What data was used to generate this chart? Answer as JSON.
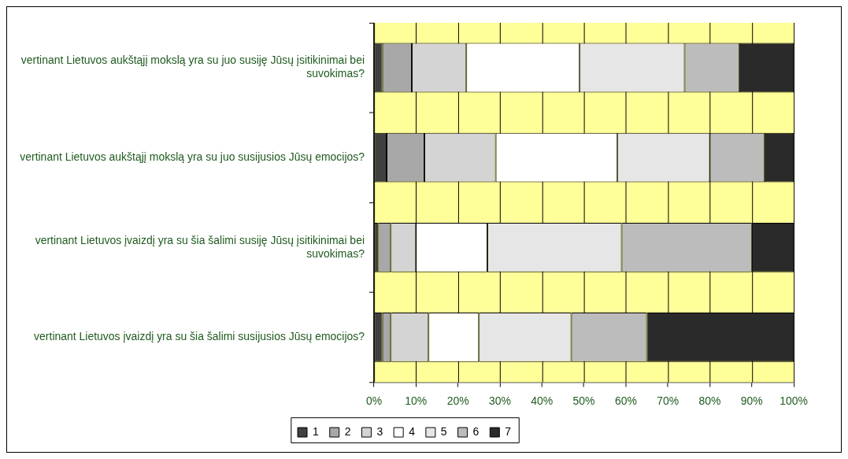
{
  "chart_data": {
    "type": "bar",
    "orientation": "horizontal",
    "stacked": true,
    "categories": [
      "vertinant Lietuvos aukštąjį mokslą yra su juo susiję Jūsų įsitikinimai bei suvokimas?",
      "vertinant Lietuvos aukštąjį mokslą yra su juo susijusios Jūsų emocijos?",
      "vertinant Lietuvos įvaizdį yra su šia šalimi susiję Jūsų įsitikinimai bei suvokimas?",
      "vertinant Lietuvos įvaizdį yra su šia šalimi susijusios Jūsų emocijos?"
    ],
    "series": [
      {
        "name": "1",
        "color": "#404040",
        "values": [
          2,
          3,
          1,
          2
        ]
      },
      {
        "name": "2",
        "color": "#a8a8a8",
        "values": [
          7,
          9,
          3,
          2
        ]
      },
      {
        "name": "3",
        "color": "#d4d4d4",
        "values": [
          13,
          17,
          6,
          9
        ]
      },
      {
        "name": "4",
        "color": "#ffffff",
        "values": [
          27,
          29,
          17,
          12
        ]
      },
      {
        "name": "5",
        "color": "#e6e6e6",
        "values": [
          25,
          22,
          32,
          22
        ]
      },
      {
        "name": "6",
        "color": "#bcbcbc",
        "values": [
          13,
          13,
          31,
          18
        ]
      },
      {
        "name": "7",
        "color": "#2a2a2a",
        "values": [
          13,
          7,
          10,
          35
        ]
      }
    ],
    "xlim": [
      0,
      100
    ],
    "xticks": [
      {
        "value": 0,
        "label": "0%"
      },
      {
        "value": 10,
        "label": "10%"
      },
      {
        "value": 20,
        "label": "20%"
      },
      {
        "value": 30,
        "label": "30%"
      },
      {
        "value": 40,
        "label": "40%"
      },
      {
        "value": 50,
        "label": "50%"
      },
      {
        "value": 60,
        "label": "60%"
      },
      {
        "value": 70,
        "label": "70%"
      },
      {
        "value": 80,
        "label": "80%"
      },
      {
        "value": 90,
        "label": "90%"
      },
      {
        "value": 100,
        "label": "100%"
      }
    ],
    "grid": "x",
    "legend": "bottom"
  }
}
